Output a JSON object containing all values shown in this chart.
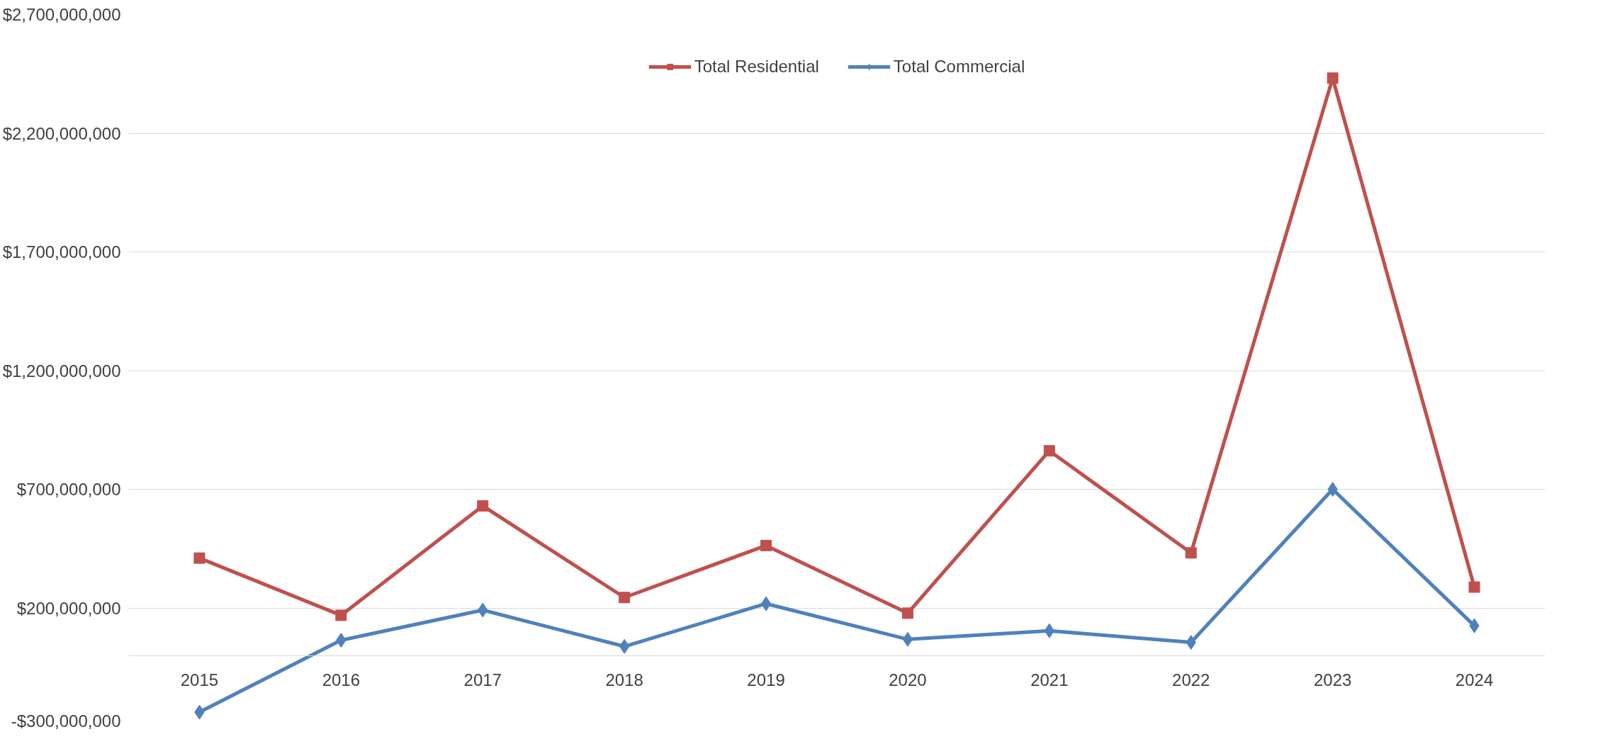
{
  "chart_data": {
    "type": "line",
    "categories": [
      "2015",
      "2016",
      "2017",
      "2018",
      "2019",
      "2020",
      "2021",
      "2022",
      "2023",
      "2024"
    ],
    "series": [
      {
        "name": "Total Residential",
        "color": "#c0504d",
        "marker": "square",
        "values": [
          410000000,
          169000000,
          630000000,
          244000000,
          463000000,
          178000000,
          862000000,
          432000000,
          2432000000,
          288000000
        ]
      },
      {
        "name": "Total Commercial",
        "color": "#4f81bd",
        "marker": "diamond",
        "values": [
          -239000000,
          64000000,
          191000000,
          38000000,
          218000000,
          68000000,
          104000000,
          55000000,
          700000000,
          125000000
        ]
      }
    ],
    "ylim": [
      -300000000,
      2700000000
    ],
    "yticks": [
      {
        "value": -300000000,
        "label": "-$300,000,000"
      },
      {
        "value": 200000000,
        "label": "$200,000,000"
      },
      {
        "value": 700000000,
        "label": "$700,000,000"
      },
      {
        "value": 1200000000,
        "label": "$1,200,000,000"
      },
      {
        "value": 1700000000,
        "label": "$1,700,000,000"
      },
      {
        "value": 2200000000,
        "label": "$2,200,000,000"
      },
      {
        "value": 2700000000,
        "label": "$2,700,000,000"
      }
    ],
    "grid": "y",
    "legend": "top",
    "line_style": "solid"
  }
}
